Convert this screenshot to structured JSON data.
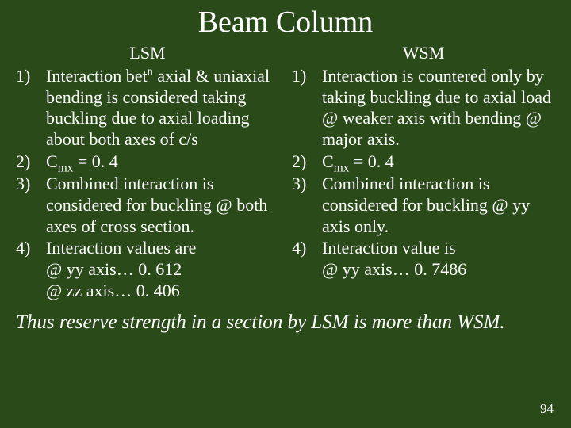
{
  "background_color": "#2a4a1a",
  "text_color": "#ffffff",
  "title": "Beam Column",
  "left": {
    "header": "LSM",
    "items": [
      {
        "n": "1)",
        "html": "Interaction bet<span class=\"sup\">n</span> axial &amp; uniaxial bending is considered taking buckling due to axial loading about both axes of c/s"
      },
      {
        "n": "2)",
        "html": "C<span class=\"sub\">mx</span> = 0. 4"
      },
      {
        "n": "3)",
        "html": "Combined interaction is considered for buckling @ both axes of cross section."
      },
      {
        "n": "4)",
        "html": "Interaction values are<br>@ yy axis&hellip; 0. 612<br>@ zz axis&hellip; 0. 406"
      }
    ]
  },
  "right": {
    "header": "WSM",
    "items": [
      {
        "n": "1)",
        "html": "Interaction is countered only by taking buckling due to axial load @ weaker axis with bending @ major axis."
      },
      {
        "n": "2)",
        "html": "C<span class=\"sub\">mx</span> = 0. 4"
      },
      {
        "n": "3)",
        "html": "Combined interaction is considered for buckling @ yy axis only."
      },
      {
        "n": "4)",
        "html": "Interaction value is<br>@ yy axis&hellip; 0. 7486"
      }
    ]
  },
  "conclusion": "Thus reserve strength in a section by LSM is more than WSM.",
  "page_number": "94"
}
